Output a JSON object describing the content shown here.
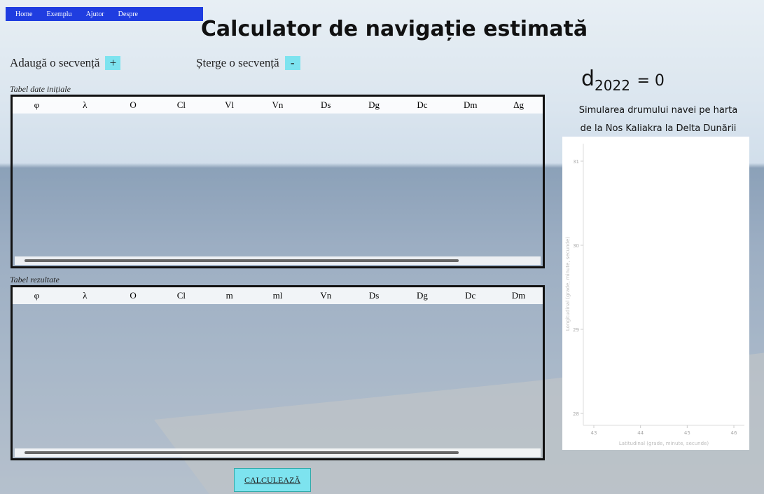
{
  "nav": [
    "Home",
    "Exemplu",
    "Ajutor",
    "Despre"
  ],
  "title": "Calculator de navigație estimată",
  "controls": {
    "add_label": "Adaugă o secvență",
    "add_button": "+",
    "delete_label": "Șterge o secvență",
    "delete_button": "-"
  },
  "formula": {
    "base": "d",
    "subscript": "2022",
    "rest": "= 0"
  },
  "initial_table": {
    "caption": "Tabel date inițiale",
    "headers": [
      "φ",
      "λ",
      "O",
      "Cl",
      "Vl",
      "Vn",
      "Ds",
      "Dg",
      "Dc",
      "Dm",
      "Δg"
    ]
  },
  "results_table": {
    "caption": "Tabel rezultate",
    "headers": [
      "φ",
      "λ",
      "O",
      "Cl",
      "m",
      "ml",
      "Vn",
      "Ds",
      "Dg",
      "Dc",
      "Dm"
    ]
  },
  "map": {
    "title_lines": [
      "Simularea drumului navei pe harta",
      "de la Nos Kaliakra la Delta Dunării"
    ],
    "xlabel": "Latitudinal (grade, minute, secunde)",
    "ylabel": "Longitudinal (grade, minute, secunde)",
    "xticks": [
      43,
      44,
      45,
      46
    ],
    "yticks": [
      31,
      30,
      29,
      28
    ]
  },
  "calculate_button": "CALCULEAZĂ"
}
